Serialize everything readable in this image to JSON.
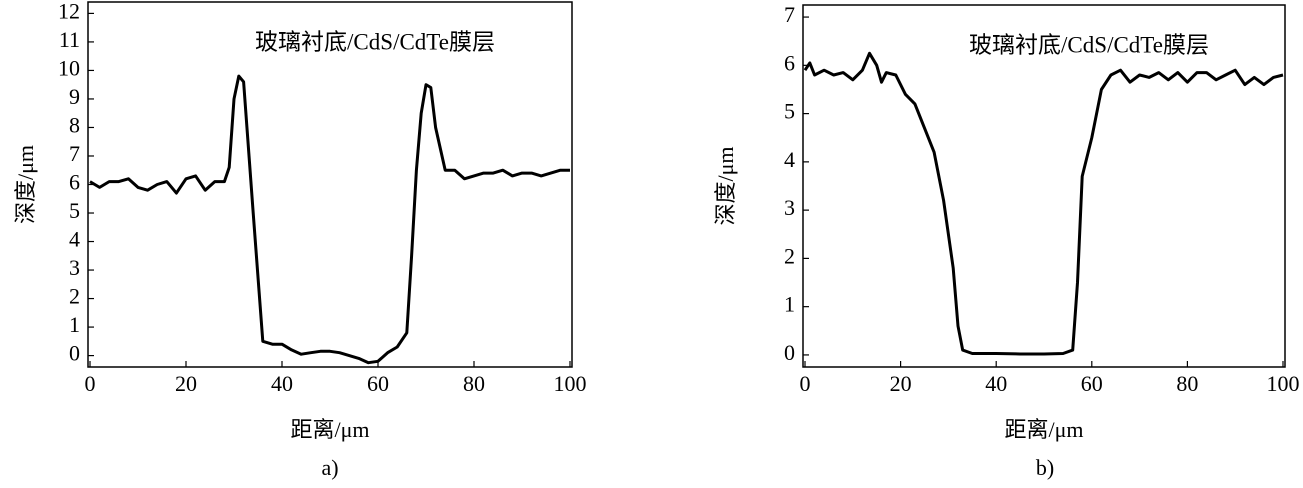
{
  "chart_data": [
    {
      "type": "line",
      "annotation": "玻璃衬底/CdS/CdTe膜层",
      "xlabel": "距离/μm",
      "ylabel": "深度/μm",
      "caption": "a)",
      "xlim": [
        0,
        100
      ],
      "xticks": [
        0,
        20,
        40,
        60,
        80,
        100
      ],
      "ylim": [
        -0.4,
        12.4
      ],
      "yticks": [
        0,
        1,
        2,
        3,
        4,
        5,
        6,
        7,
        8,
        9,
        10,
        11,
        12
      ],
      "color": "#000000",
      "x": [
        0,
        2,
        4,
        6,
        8,
        10,
        12,
        14,
        16,
        18,
        20,
        22,
        24,
        26,
        28,
        29,
        30,
        31,
        32,
        34,
        36,
        38,
        40,
        42,
        44,
        46,
        48,
        50,
        52,
        54,
        56,
        58,
        60,
        62,
        64,
        66,
        67,
        68,
        69,
        70,
        71,
        72,
        74,
        76,
        78,
        80,
        82,
        84,
        86,
        88,
        90,
        92,
        94,
        96,
        98,
        100
      ],
      "values": [
        6.1,
        5.9,
        6.1,
        6.1,
        6.2,
        5.9,
        5.8,
        6.0,
        6.1,
        5.7,
        6.2,
        6.3,
        5.8,
        6.1,
        6.1,
        6.6,
        9.0,
        9.8,
        9.6,
        5.0,
        0.5,
        0.4,
        0.4,
        0.2,
        0.05,
        0.1,
        0.15,
        0.15,
        0.1,
        0.0,
        -0.1,
        -0.25,
        -0.2,
        0.1,
        0.3,
        0.8,
        3.5,
        6.5,
        8.5,
        9.5,
        9.4,
        8.0,
        6.5,
        6.5,
        6.2,
        6.3,
        6.4,
        6.4,
        6.5,
        6.3,
        6.4,
        6.4,
        6.3,
        6.4,
        6.5,
        6.5
      ]
    },
    {
      "type": "line",
      "annotation": "玻璃衬底/CdS/CdTe膜层",
      "xlabel": "距离/μm",
      "ylabel": "深度/μm",
      "caption": "b)",
      "xlim": [
        0,
        100
      ],
      "xticks": [
        0,
        20,
        40,
        60,
        80,
        100
      ],
      "ylim": [
        -0.25,
        7.25
      ],
      "yticks": [
        0,
        1,
        2,
        3,
        4,
        5,
        6,
        7
      ],
      "color": "#000000",
      "x": [
        0,
        1,
        2,
        4,
        6,
        8,
        10,
        12,
        13.5,
        15,
        16,
        17,
        19,
        21,
        23,
        25,
        27,
        29,
        31,
        32,
        33,
        35,
        40,
        45,
        50,
        54,
        56,
        57,
        58,
        60,
        62,
        64,
        66,
        68,
        70,
        72,
        74,
        76,
        78,
        80,
        82,
        84,
        86,
        88,
        90,
        92,
        94,
        96,
        98,
        100
      ],
      "values": [
        5.9,
        6.05,
        5.8,
        5.9,
        5.8,
        5.85,
        5.7,
        5.9,
        6.25,
        6.0,
        5.65,
        5.85,
        5.8,
        5.4,
        5.2,
        4.7,
        4.2,
        3.2,
        1.8,
        0.6,
        0.1,
        0.03,
        0.03,
        0.02,
        0.02,
        0.03,
        0.1,
        1.5,
        3.7,
        4.5,
        5.5,
        5.8,
        5.9,
        5.65,
        5.8,
        5.75,
        5.85,
        5.7,
        5.85,
        5.65,
        5.85,
        5.85,
        5.7,
        5.8,
        5.9,
        5.6,
        5.75,
        5.6,
        5.75,
        5.8
      ]
    }
  ]
}
